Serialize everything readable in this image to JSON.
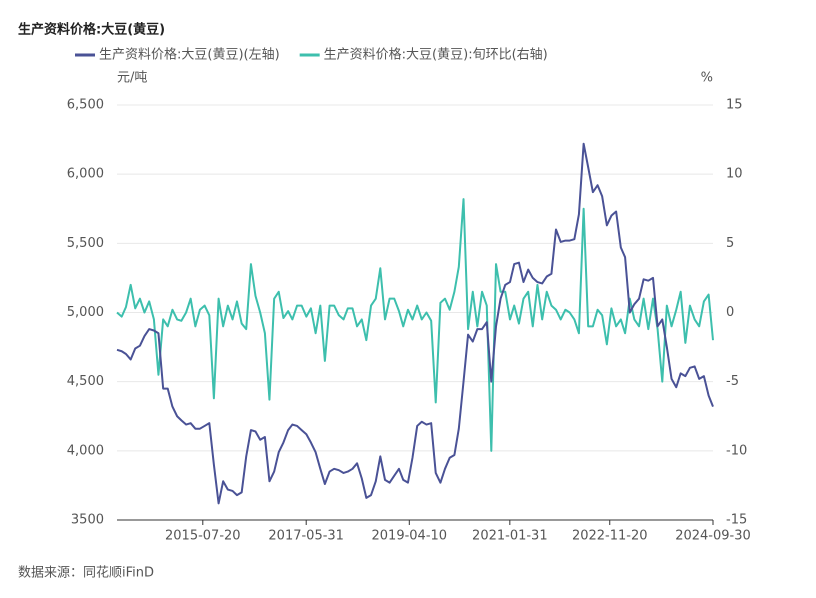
{
  "chart_data": {
    "type": "line",
    "title": "生产资料价格:大豆(黄豆)",
    "y_label": "元/吨",
    "y2_label": "%",
    "source": "数据来源：同花顺iFinD",
    "x": [
      "2014-01-01",
      "2014-02-01",
      "2014-03-01",
      "2014-04-01",
      "2014-05-01",
      "2014-06-01",
      "2014-07-01",
      "2014-08-01",
      "2014-09-01",
      "2014-10-01",
      "2014-11-01",
      "2014-12-01",
      "2015-01-01",
      "2015-02-01",
      "2015-03-01",
      "2015-04-01",
      "2015-05-01",
      "2015-06-01",
      "2015-07-01",
      "2015-08-01",
      "2015-09-01",
      "2015-10-01",
      "2015-11-01",
      "2015-12-01",
      "2016-01-01",
      "2016-02-01",
      "2016-03-01",
      "2016-04-01",
      "2016-05-01",
      "2016-06-01",
      "2016-07-01",
      "2016-08-01",
      "2016-09-01",
      "2016-10-01",
      "2016-11-01",
      "2016-12-01",
      "2017-01-01",
      "2017-02-01",
      "2017-03-01",
      "2017-04-01",
      "2017-05-01",
      "2017-06-01",
      "2017-07-01",
      "2017-08-01",
      "2017-09-01",
      "2017-10-01",
      "2017-11-01",
      "2017-12-01",
      "2018-01-01",
      "2018-02-01",
      "2018-03-01",
      "2018-04-01",
      "2018-05-01",
      "2018-06-01",
      "2018-07-01",
      "2018-08-01",
      "2018-09-01",
      "2018-10-01",
      "2018-11-01",
      "2018-12-01",
      "2019-01-01",
      "2019-02-01",
      "2019-03-01",
      "2019-04-01",
      "2019-05-01",
      "2019-06-01",
      "2019-07-01",
      "2019-08-01",
      "2019-09-01",
      "2019-10-01",
      "2019-11-01",
      "2019-12-01",
      "2020-01-01",
      "2020-02-01",
      "2020-03-01",
      "2020-04-01",
      "2020-05-01",
      "2020-06-01",
      "2020-07-01",
      "2020-08-01",
      "2020-09-01",
      "2020-10-01",
      "2020-11-01",
      "2020-12-01",
      "2021-01-01",
      "2021-02-01",
      "2021-03-01",
      "2021-04-01",
      "2021-05-01",
      "2021-06-01",
      "2021-07-01",
      "2021-08-01",
      "2021-09-01",
      "2021-10-01",
      "2021-11-01",
      "2021-12-01",
      "2022-01-01",
      "2022-02-01",
      "2022-03-01",
      "2022-04-01",
      "2022-05-01",
      "2022-06-01",
      "2022-07-01",
      "2022-08-01",
      "2022-09-01",
      "2022-10-01",
      "2022-11-01",
      "2022-12-01",
      "2023-01-01",
      "2023-02-01",
      "2023-03-01",
      "2023-04-01",
      "2023-05-01",
      "2023-06-01",
      "2023-07-01",
      "2023-08-01",
      "2023-09-01",
      "2023-10-01",
      "2023-11-01",
      "2023-12-01",
      "2024-01-01",
      "2024-02-01",
      "2024-03-01",
      "2024-04-01",
      "2024-05-01",
      "2024-06-01",
      "2024-07-01",
      "2024-08-01",
      "2024-09-01",
      "2024-09-30"
    ],
    "series": [
      {
        "name": "生产资料价格:大豆(黄豆)(左轴)",
        "color": "#4a5296",
        "values": [
          4730,
          4720,
          4700,
          4660,
          4740,
          4760,
          4830,
          4880,
          4870,
          4850,
          4450,
          4450,
          4320,
          4250,
          4220,
          4190,
          4200,
          4160,
          4160,
          4180,
          4200,
          3900,
          3620,
          3780,
          3720,
          3710,
          3680,
          3700,
          3960,
          4150,
          4140,
          4080,
          4100,
          3780,
          3850,
          3990,
          4060,
          4150,
          4190,
          4180,
          4150,
          4120,
          4060,
          3990,
          3870,
          3760,
          3850,
          3870,
          3860,
          3840,
          3850,
          3870,
          3910,
          3800,
          3660,
          3680,
          3780,
          3960,
          3790,
          3770,
          3820,
          3870,
          3790,
          3770,
          3950,
          4180,
          4210,
          4190,
          4200,
          3840,
          3770,
          3870,
          3950,
          3970,
          4160,
          4500,
          4840,
          4790,
          4880,
          4880,
          4930,
          4500,
          4900,
          5100,
          5200,
          5220,
          5350,
          5360,
          5220,
          5310,
          5250,
          5220,
          5210,
          5260,
          5280,
          5600,
          5510,
          5520,
          5520,
          5530,
          5710,
          6220,
          6050,
          5870,
          5920,
          5840,
          5630,
          5700,
          5730,
          5470,
          5400,
          5000,
          5060,
          5100,
          5240,
          5230,
          5250,
          4900,
          4950,
          4750,
          4520,
          4460,
          4560,
          4540,
          4600,
          4610,
          4520,
          4540,
          4400,
          4320
        ]
      },
      {
        "name": "生产资料价格:大豆(黄豆):旬环比(右轴)",
        "color": "#3dbfad",
        "axis": "y2",
        "values": [
          0,
          -0.3,
          0.4,
          2.0,
          0.3,
          1.0,
          0,
          0.8,
          -0.5,
          -4.5,
          -0.5,
          -1.0,
          0.2,
          -0.5,
          -0.6,
          0,
          1.0,
          -1.0,
          0.2,
          0.5,
          -0.2,
          -6.2,
          1.0,
          -1.0,
          0.5,
          -0.5,
          0.8,
          -0.8,
          -1.2,
          3.5,
          1.2,
          0,
          -1.5,
          -6.3,
          1.0,
          1.5,
          -0.4,
          0.1,
          -0.5,
          0.5,
          0.5,
          -0.3,
          0.3,
          -1.5,
          0.5,
          -3.5,
          0.5,
          0.5,
          -0.2,
          -0.5,
          0.3,
          0.3,
          -1.0,
          -0.5,
          -2.0,
          0.5,
          1.0,
          3.2,
          -0.5,
          1.0,
          1.0,
          0.1,
          -1.0,
          0.2,
          -0.5,
          0.5,
          -0.5,
          0,
          -0.6,
          -6.5,
          0.7,
          1.0,
          0.2,
          1.5,
          3.3,
          8.2,
          -1.2,
          1.5,
          -1.0,
          1.5,
          0.5,
          -10.0,
          3.5,
          1.5,
          1.5,
          -0.5,
          0.5,
          -0.8,
          1.0,
          1.5,
          -1.0,
          2.0,
          -0.5,
          1.5,
          0.5,
          0.2,
          -0.5,
          0.2,
          0,
          -0.5,
          -1.5,
          7.5,
          -1.0,
          -1.0,
          0.2,
          -0.2,
          -2.3,
          0.3,
          -1.0,
          -0.5,
          -1.5,
          1.0,
          -0.5,
          -1.0,
          1.0,
          -1.2,
          1.0,
          -1.2,
          -5.0,
          0.5,
          -1.0,
          0.2,
          1.5,
          -2.2,
          0.5,
          -0.5,
          -1.0,
          0.8,
          1.3,
          -2.0
        ]
      }
    ],
    "xlim": [
      "2014-01-01",
      "2024-09-30"
    ],
    "xticks": [
      "2015-07-20",
      "2017-05-31",
      "2019-04-10",
      "2021-01-31",
      "2022-11-20",
      "2024-09-30"
    ],
    "ylim": [
      3500,
      6500
    ],
    "yticks": [
      3500,
      {
        "value": 4000,
        "label": "4,000"
      },
      {
        "value": 4500,
        "label": "4,500"
      },
      {
        "value": 5000,
        "label": "5,000"
      },
      {
        "value": 5500,
        "label": "5,500"
      },
      {
        "value": 6000,
        "label": "6,000"
      },
      {
        "value": 6500,
        "label": "6,500"
      }
    ],
    "y2lim": [
      -15,
      15
    ],
    "y2ticks": [
      -15,
      -10,
      -5,
      0,
      5,
      10,
      15
    ],
    "grid": true
  }
}
